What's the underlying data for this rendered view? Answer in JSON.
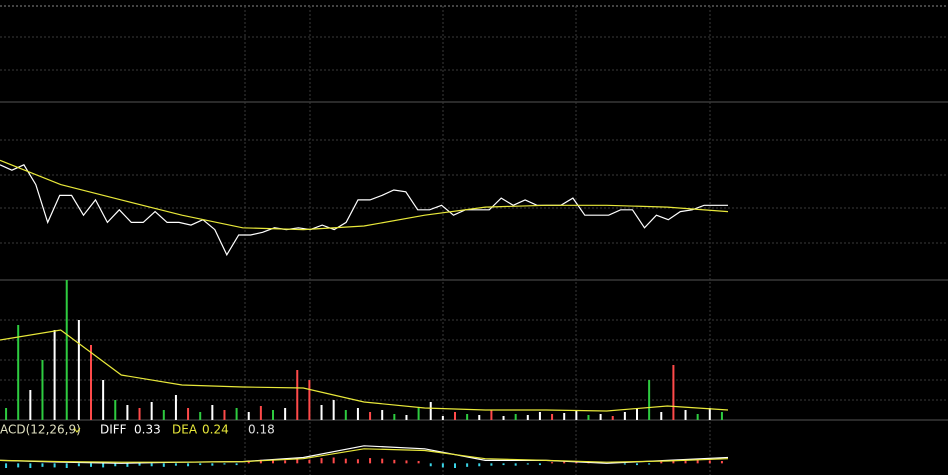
{
  "chart_data": [
    {
      "type": "line",
      "ylim": [
        9,
        11
      ],
      "series": [
        {
          "color": "#ffffff",
          "values": [
            10.28,
            10.22,
            10.28,
            10.06,
            9.64,
            9.94,
            9.94,
            9.72,
            9.89,
            9.64,
            9.78,
            9.64,
            9.64,
            9.76,
            9.64,
            9.64,
            9.61,
            9.67,
            9.56,
            9.28,
            9.5,
            9.5,
            9.53,
            9.58,
            9.56,
            9.58,
            9.56,
            9.61,
            9.56,
            9.64,
            9.89,
            9.89,
            9.94,
            10.0,
            9.98,
            9.78,
            9.78,
            9.83,
            9.72,
            9.78,
            9.78,
            9.78,
            9.91,
            9.83,
            9.89,
            9.83,
            9.83,
            9.83,
            9.91,
            9.72,
            9.72,
            9.72,
            9.78,
            9.78,
            9.58,
            9.72,
            9.67,
            9.76,
            9.78,
            9.83,
            9.83,
            9.83
          ]
        },
        {
          "color": "#e8e83a",
          "values": [
            10.33,
            10.06,
            9.89,
            9.72,
            9.58,
            9.56,
            9.6,
            9.72,
            9.81,
            9.83,
            9.83,
            9.81,
            9.76
          ]
        }
      ]
    },
    {
      "type": "bar",
      "ylim": [
        0,
        140
      ],
      "palette": {
        "up": "#ff4a4a",
        "down": "#2ecc40",
        "flat": "#ffffff"
      },
      "kinds": [
        "down",
        "down",
        "flat",
        "down",
        "flat",
        "down",
        "flat",
        "up",
        "flat",
        "down",
        "flat",
        "up",
        "flat",
        "down",
        "flat",
        "up",
        "down",
        "flat",
        "up",
        "down",
        "flat",
        "up",
        "down",
        "flat",
        "up",
        "up",
        "flat",
        "flat",
        "down",
        "flat",
        "up",
        "flat",
        "down",
        "flat",
        "down",
        "flat",
        "flat",
        "up",
        "down",
        "flat",
        "up",
        "flat",
        "down",
        "flat",
        "flat",
        "up",
        "flat",
        "flat",
        "down",
        "flat",
        "up",
        "flat",
        "flat",
        "down",
        "flat",
        "up",
        "flat",
        "down",
        "flat",
        "down"
      ],
      "values": [
        12,
        95,
        30,
        60,
        90,
        140,
        100,
        75,
        40,
        20,
        15,
        12,
        18,
        10,
        25,
        12,
        8,
        15,
        10,
        12,
        8,
        14,
        10,
        12,
        50,
        40,
        15,
        20,
        10,
        12,
        8,
        10,
        6,
        5,
        12,
        18,
        4,
        8,
        6,
        5,
        10,
        4,
        6,
        5,
        8,
        6,
        7,
        10,
        5,
        6,
        4,
        8,
        12,
        40,
        8,
        55,
        10,
        6,
        12,
        8
      ],
      "series": [
        {
          "color": "#e8e83a",
          "values": [
            80,
            90,
            45,
            35,
            33,
            32,
            18,
            12,
            10,
            10,
            9,
            14,
            10
          ]
        }
      ]
    },
    {
      "type": "macd",
      "ylim": [
        -0.2,
        0.4
      ],
      "label": "ACD(12,26,9)",
      "diff": {
        "label": "DIFF",
        "value": 0.33
      },
      "dea": {
        "label": "DEA",
        "value": 0.24
      },
      "macd": 0.18,
      "palette": {
        "up": "#ff4a4a",
        "down": "#3ad6e8"
      },
      "values": [
        -0.08,
        -0.07,
        -0.08,
        -0.06,
        -0.07,
        -0.08,
        -0.05,
        -0.06,
        -0.07,
        -0.05,
        -0.06,
        -0.04,
        -0.05,
        -0.06,
        -0.04,
        -0.05,
        -0.03,
        -0.04,
        -0.02,
        -0.03,
        0.05,
        0.06,
        0.07,
        0.05,
        0.08,
        0.06,
        0.09,
        0.1,
        0.08,
        0.07,
        0.09,
        0.08,
        0.06,
        0.05,
        0.04,
        -0.05,
        -0.07,
        -0.08,
        -0.06,
        -0.05,
        -0.04,
        -0.03,
        -0.04,
        -0.02,
        -0.03,
        0.02,
        0.03,
        0.02,
        0.04,
        0.03,
        0.02,
        -0.02,
        -0.03,
        -0.02,
        0.03,
        0.04,
        0.05,
        0.06,
        0.05,
        0.04
      ],
      "series": [
        {
          "color": "#ffffff",
          "values": [
            0.05,
            0.02,
            0,
            0.02,
            0.03,
            0.1,
            0.3,
            0.25,
            0.05,
            0.05,
            0.0,
            0.05,
            0.1
          ]
        },
        {
          "color": "#e8e83a",
          "values": [
            0.05,
            0.03,
            0.02,
            0.02,
            0.03,
            0.08,
            0.25,
            0.22,
            0.08,
            0.05,
            0.02,
            0.04,
            0.08
          ]
        }
      ]
    }
  ]
}
